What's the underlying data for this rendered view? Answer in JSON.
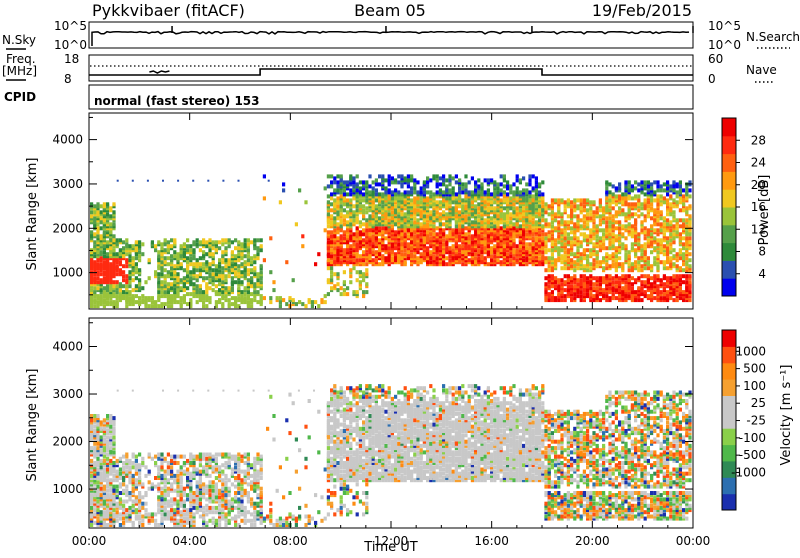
{
  "header": {
    "station": "Pykkvibaer (fitACF)",
    "beam": "Beam 05",
    "date": "19/Feb/2015"
  },
  "sky_panel": {
    "left_label": "N.Sky",
    "right_label": "N.Search",
    "left_ticks": [
      "10^5",
      "10^0"
    ],
    "right_ticks": [
      "10^5",
      "10^0"
    ]
  },
  "freq_panel": {
    "left_label_1": "Freq.",
    "left_label_2": "[MHz]",
    "right_label": "Nave",
    "left_ticks": [
      "18",
      "8"
    ],
    "right_ticks": [
      "60",
      "0"
    ]
  },
  "cpid_panel": {
    "label": "CPID",
    "mode": "normal (fast stereo) 153"
  },
  "chart_data": [
    {
      "type": "heatmap",
      "title": "Power",
      "xlabel": "",
      "ylabel": "Slant Range [km]",
      "x_ticks": [
        "00:00",
        "04:00",
        "08:00",
        "12:00",
        "16:00",
        "20:00",
        "00:00"
      ],
      "y_ticks": [
        "1000",
        "2000",
        "3000",
        "4000"
      ],
      "ylim": [
        180,
        4600
      ],
      "colorbar": {
        "label": "Power [dB]",
        "ticks": [
          "4",
          "8",
          "12",
          "16",
          "20",
          "24",
          "28"
        ],
        "colors": [
          "#0000ee",
          "#2a4fb0",
          "#2e8a3a",
          "#55a04a",
          "#9ac43a",
          "#f0c820",
          "#ff9a10",
          "#ff6010",
          "#ff2a10",
          "#ee0000"
        ]
      }
    },
    {
      "type": "heatmap",
      "title": "Velocity",
      "xlabel": "Time UT",
      "ylabel": "Slant Range [km]",
      "x_ticks": [
        "00:00",
        "04:00",
        "08:00",
        "12:00",
        "16:00",
        "20:00",
        "00:00"
      ],
      "y_ticks": [
        "1000",
        "2000",
        "3000",
        "4000"
      ],
      "ylim": [
        180,
        4600
      ],
      "colorbar": {
        "label": "Velocity [m s⁻¹]",
        "ticks": [
          "1000",
          "500",
          "100",
          "25",
          "-25",
          "-100",
          "-500",
          "-1000"
        ],
        "colors": [
          "#1a2fae",
          "#2c6fb0",
          "#2f8a55",
          "#4fb84a",
          "#8ad04a",
          "#c8c8c8",
          "#c8c8c8",
          "#f5a030",
          "#ff8a10",
          "#ff5010",
          "#ee0000"
        ]
      }
    }
  ],
  "colors": {
    "background": "#ffffff",
    "axis": "#000000",
    "ground_scatter": "#c8c8c8"
  }
}
